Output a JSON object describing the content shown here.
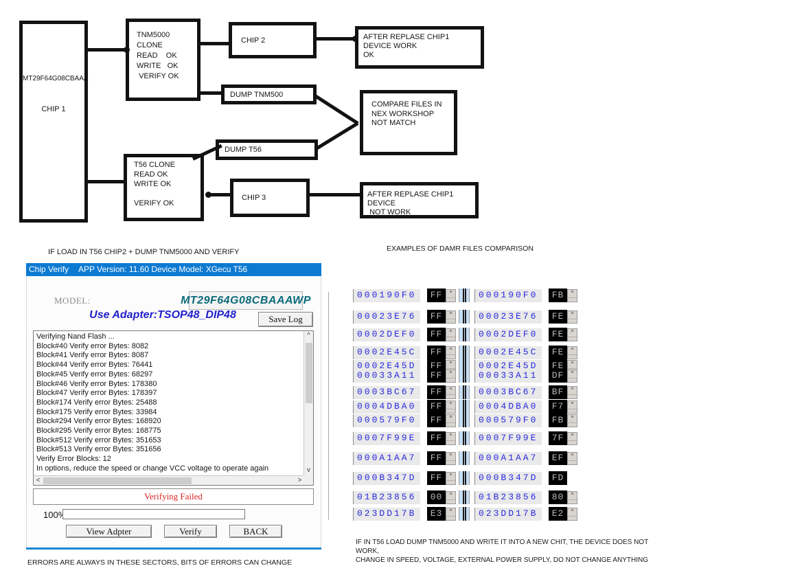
{
  "icons": {
    "spinner_up": "^",
    "scroll_up": "^",
    "scroll_down": "v",
    "scroll_left": "<",
    "scroll_right": ">"
  },
  "diagram": {
    "chip1": {
      "model": "MT29F64G08CBAAA",
      "label": "CHIP 1"
    },
    "tnm5000_clone": "TNM5000 CLONE\nREAD    OK\nWRITE   OK\n VERIFY OK",
    "chip2": "CHIP 2",
    "after_work": "AFTER REPLASE CHIP1 DEVICE WORK\nOK",
    "dump_tnm500": "DUMP TNM500",
    "compare": "COMPARE FILES IN\nNEX WORKSHOP\nNOT MATCH",
    "dump_t56": "DUMP T56",
    "t56_clone": "T56 CLONE\nREAD OK\nWRITE OK\n\nVERIFY OK",
    "chip3": "CHIP 3",
    "after_notwork": "AFTER REPLASE CHIP1 DEVICE\n NOT WORK"
  },
  "captions": {
    "left": "IF LOAD IN T56 CHIP2 + DUMP TNM5000 AND VERIFY",
    "right": "EXAMPLES OF DAMR FILES COMPARISON",
    "bottom_left": "ERRORS ARE ALWAYS IN THESE SECTORS, BITS OF ERRORS CAN CHANGE",
    "bottom_right": [
      "IF IN T56 LOAD DUMP TNM5000 AND WRITE IT INTO A NEW CHIT, THE DEVICE DOES NOT",
      "WORK,",
      "CHANGE IN SPEED, VOLTAGE, EXTERNAL POWER SUPPLY, DO NOT CHANGE ANYTHING"
    ]
  },
  "verify_window": {
    "title_left": "Chip Verify",
    "title_right": "APP Version: 11.60 Device Model: XGecu T56",
    "model_label": "MODEL:",
    "model_value": "MT29F64G08CBAAAWP",
    "adapter": "Use Adapter:TSOP48_DIP48",
    "save_log": "Save Log",
    "log_lines": [
      "Verifying Nand Flash ...",
      "Block#40 Verify error Bytes: 8082",
      "Block#41 Verify error Bytes: 8087",
      "Block#44 Verify error Bytes: 76441",
      "Block#45 Verify error Bytes: 68297",
      "Block#46 Verify error Bytes: 178380",
      "Block#47 Verify error Bytes: 178397",
      "Block#174 Verify error Bytes: 25488",
      "Block#175 Verify error Bytes: 33984",
      "Block#294 Verify error Bytes: 168920",
      "Block#295 Verify error Bytes: 168775",
      "Block#512 Verify error Bytes: 351653",
      "Block#513 Verify error Bytes: 351656",
      "Verify Error Blocks: 12",
      "In options, reduce the speed or change VCC voltage to operate again"
    ],
    "status": "Verifying Failed",
    "progress_label": "100%",
    "buttons": [
      "View Adpter",
      "Verify",
      "BACK"
    ]
  },
  "hex_compare": {
    "rows": [
      {
        "addr": "000190F0",
        "left": "FF",
        "right": "FB"
      },
      {
        "addr": "00023E76",
        "left": "FF",
        "right": "FE"
      },
      {
        "addr": "0002DEF0",
        "left": "FF",
        "right": "FE"
      },
      {
        "addr": "0002E45C",
        "left": "FF",
        "right": "FE"
      },
      {
        "addr": "0002E45D",
        "left": "FF",
        "right": "FE",
        "partial": true
      },
      {
        "addr": "00033A11",
        "left": "FF",
        "right": "DF"
      },
      {
        "addr": "0003BC67",
        "left": "FF",
        "right": "BF"
      },
      {
        "addr": "0004DBA0",
        "left": "FF",
        "right": "F7"
      },
      {
        "addr": "000579F0",
        "left": "FF",
        "right": "FB"
      },
      {
        "addr": "0007F99E",
        "left": "FF",
        "right": "7F"
      },
      {
        "addr": "000A1AA7",
        "left": "FF",
        "right": "EF"
      },
      {
        "addr": "000B347D",
        "left": "FF",
        "right": "FD",
        "right_spinner": false
      },
      {
        "addr": "01B23856",
        "left": "00",
        "right": "80"
      },
      {
        "addr": "023DD17B",
        "left": "E3",
        "right": "E2"
      }
    ]
  }
}
